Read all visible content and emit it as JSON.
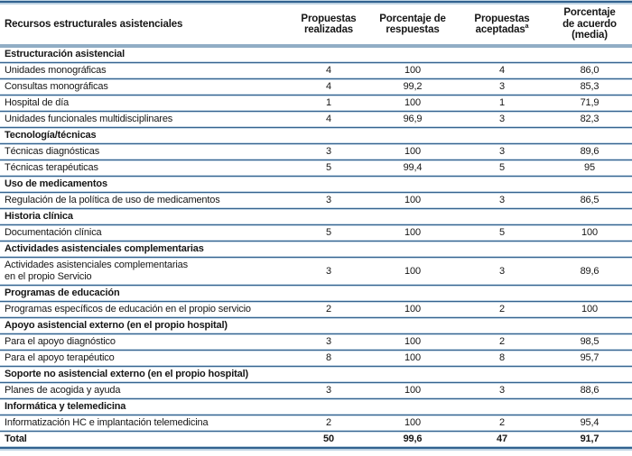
{
  "table": {
    "columns": {
      "c1": "Recursos estructurales asistenciales",
      "c2": "Propuestas\nrealizadas",
      "c3": "Porcentaje de\nrespuestas",
      "c4": "Propuestas\naceptadas",
      "c4_sup": "a",
      "c5": "Porcentaje\nde acuerdo\n(media)"
    },
    "rows": [
      {
        "type": "section",
        "label": "Estructuración asistencial",
        "values": [
          "",
          "",
          "",
          ""
        ]
      },
      {
        "type": "data",
        "label": "Unidades monográficas",
        "values": [
          "4",
          "100",
          "4",
          "86,0"
        ]
      },
      {
        "type": "data",
        "label": "Consultas monográficas",
        "values": [
          "4",
          "99,2",
          "3",
          "85,3"
        ]
      },
      {
        "type": "data",
        "label": "Hospital de día",
        "values": [
          "1",
          "100",
          "1",
          "71,9"
        ]
      },
      {
        "type": "data",
        "label": "Unidades funcionales multidisciplinares",
        "values": [
          "4",
          "96,9",
          "3",
          "82,3"
        ]
      },
      {
        "type": "section",
        "label": "Tecnología/técnicas",
        "values": [
          "",
          "",
          "",
          ""
        ]
      },
      {
        "type": "data",
        "label": "Técnicas diagnósticas",
        "values": [
          "3",
          "100",
          "3",
          "89,6"
        ]
      },
      {
        "type": "data",
        "label": "Técnicas terapéuticas",
        "values": [
          "5",
          "99,4",
          "5",
          "95"
        ]
      },
      {
        "type": "section",
        "label": "Uso de medicamentos",
        "values": [
          "",
          "",
          "",
          ""
        ]
      },
      {
        "type": "data",
        "label": "Regulación de la política de uso de medicamentos",
        "values": [
          "3",
          "100",
          "3",
          "86,5"
        ]
      },
      {
        "type": "section",
        "label": "Historia clínica",
        "values": [
          "",
          "",
          "",
          ""
        ]
      },
      {
        "type": "data",
        "label": "Documentación clínica",
        "values": [
          "5",
          "100",
          "5",
          "100"
        ]
      },
      {
        "type": "section",
        "label": "Actividades asistenciales complementarias",
        "values": [
          "",
          "",
          "",
          ""
        ]
      },
      {
        "type": "data",
        "label": "Actividades asistenciales complementarias\nen el propio Servicio",
        "values": [
          "3",
          "100",
          "3",
          "89,6"
        ]
      },
      {
        "type": "section",
        "label": "Programas de educación",
        "values": [
          "",
          "",
          "",
          ""
        ]
      },
      {
        "type": "data",
        "label": "Programas específicos de educación en el propio servicio",
        "values": [
          "2",
          "100",
          "2",
          "100"
        ]
      },
      {
        "type": "section",
        "label": "Apoyo asistencial externo (en el propio hospital)",
        "values": [
          "",
          "",
          "",
          ""
        ]
      },
      {
        "type": "data",
        "label": "Para el apoyo diagnóstico",
        "values": [
          "3",
          "100",
          "2",
          "98,5"
        ]
      },
      {
        "type": "data",
        "label": "Para el apoyo terapéutico",
        "values": [
          "8",
          "100",
          "8",
          "95,7"
        ]
      },
      {
        "type": "section",
        "label": "Soporte no asistencial externo (en el propio hospital)",
        "values": [
          "",
          "",
          "",
          ""
        ]
      },
      {
        "type": "data",
        "label": "Planes de acogida y ayuda",
        "values": [
          "3",
          "100",
          "3",
          "88,6"
        ]
      },
      {
        "type": "section",
        "label": "Informática y telemedicina",
        "values": [
          "",
          "",
          "",
          ""
        ]
      },
      {
        "type": "data",
        "label": "Informatización HC e implantación telemedicina",
        "values": [
          "2",
          "100",
          "2",
          "95,4"
        ]
      },
      {
        "type": "total",
        "label": "Total",
        "values": [
          "50",
          "99,6",
          "47",
          "91,7"
        ]
      }
    ],
    "colors": {
      "rule_dark": "#31618f",
      "rule_light": "#bcd1e1",
      "header_rule": "#91adc5",
      "text": "#161616"
    }
  }
}
